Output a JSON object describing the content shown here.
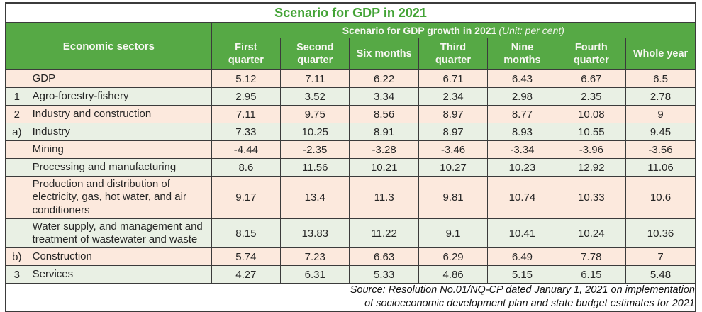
{
  "chart_data": {
    "type": "table",
    "title": "Scenario for GDP in 2021",
    "group_header": "Scenario for GDP growth in 2021",
    "unit_note": "(Unit: per cent)",
    "row_header_label": "Economic sectors",
    "columns": [
      "First\nquarter",
      "Second\nquarter",
      "Six months",
      "Third\nquarter",
      "Nine\nmonths",
      "Fourth\nquarter",
      "Whole year"
    ],
    "rows": [
      {
        "no": "",
        "sector": "GDP",
        "tone": "pink",
        "values": [
          "5.12",
          "7.11",
          "6.22",
          "6.71",
          "6.43",
          "6.67",
          "6.5"
        ]
      },
      {
        "no": "1",
        "sector": "Agro-forestry-fishery",
        "tone": "green",
        "values": [
          "2.95",
          "3.52",
          "3.34",
          "2.34",
          "2.98",
          "2.35",
          "2.78"
        ]
      },
      {
        "no": "2",
        "sector": "Industry and construction",
        "tone": "pink",
        "values": [
          "7.11",
          "9.75",
          "8.56",
          "8.97",
          "8.77",
          "10.08",
          "9"
        ]
      },
      {
        "no": "a)",
        "sector": "Industry",
        "tone": "green",
        "values": [
          "7.33",
          "10.25",
          "8.91",
          "8.97",
          "8.93",
          "10.55",
          "9.45"
        ]
      },
      {
        "no": "",
        "sector": "Mining",
        "tone": "pink",
        "values": [
          "-4.44",
          "-2.35",
          "-3.28",
          "-3.46",
          "-3.34",
          "-3.96",
          "-3.56"
        ]
      },
      {
        "no": "",
        "sector": "Processing and manufacturing",
        "tone": "green",
        "values": [
          "8.6",
          "11.56",
          "10.21",
          "10.27",
          "10.23",
          "12.92",
          "11.06"
        ]
      },
      {
        "no": "",
        "sector": "Production and distribution of electricity, gas, hot water, and air conditioners",
        "tone": "pink",
        "values": [
          "9.17",
          "13.4",
          "11.3",
          "9.81",
          "10.74",
          "10.33",
          "10.6"
        ]
      },
      {
        "no": "",
        "sector": "Water supply, and management and treatment of wastewater and waste",
        "tone": "green",
        "values": [
          "8.15",
          "13.83",
          "11.22",
          "9.1",
          "10.41",
          "10.24",
          "10.36"
        ]
      },
      {
        "no": "b)",
        "sector": "Construction",
        "tone": "pink",
        "values": [
          "5.74",
          "7.23",
          "6.63",
          "6.29",
          "6.49",
          "7.78",
          "7"
        ]
      },
      {
        "no": "3",
        "sector": "Services",
        "tone": "green",
        "values": [
          "4.27",
          "6.31",
          "5.33",
          "4.86",
          "5.15",
          "6.15",
          "5.48"
        ]
      }
    ],
    "source_note": [
      "Source: Resolution No.01/NQ-CP dated January 1, 2021 on implementation",
      "of socioeconomic development plan and state budget estimates for 2021"
    ]
  },
  "colors": {
    "header_green": "#56a945",
    "title_green": "#43a336",
    "row_pink": "#fce9dd",
    "row_green": "#e9f0e4",
    "border_dark": "#3b3b3b",
    "header_text": "#f7f7f2",
    "body_text": "#262626"
  }
}
